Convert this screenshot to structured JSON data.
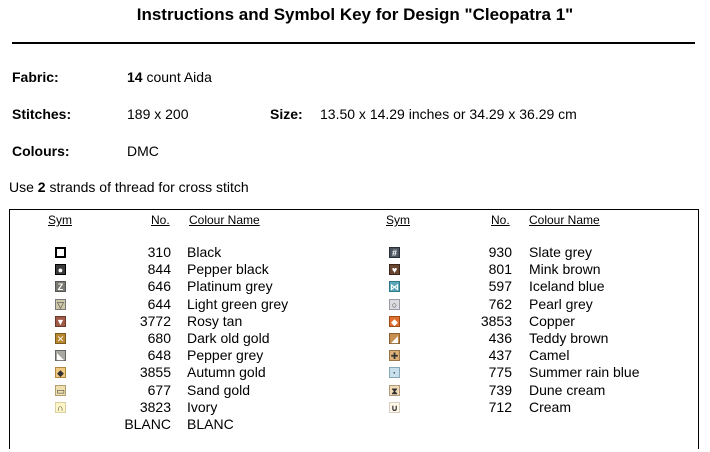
{
  "title": "Instructions and Symbol Key for Design \"Cleopatra 1\"",
  "fabric": {
    "label": "Fabric:",
    "count": "14",
    "rest": " count Aida"
  },
  "stitches": {
    "label": "Stitches:",
    "value": "189 x 200"
  },
  "size": {
    "label": "Size:",
    "value": "13.50 x 14.29 inches or 34.29 x 36.29 cm"
  },
  "colours": {
    "label": "Colours:",
    "value": "DMC"
  },
  "instructions": {
    "pre": "Use ",
    "strands": "2",
    "post": " strands of thread for cross stitch"
  },
  "table": {
    "headers": {
      "sym": "Sym",
      "no": "No.",
      "name": "Colour Name"
    },
    "left": [
      {
        "no": "310",
        "name": "Black",
        "sym_color": "#ffffff",
        "sym_border": "#000000",
        "glyph": ""
      },
      {
        "no": "844",
        "name": "Pepper black",
        "sym_color": "#3a3a3a",
        "sym_border": "#000000",
        "glyph": "●"
      },
      {
        "no": "646",
        "name": "Platinum grey",
        "sym_color": "#7a7a70",
        "sym_border": "#555555",
        "glyph": "Z"
      },
      {
        "no": "644",
        "name": "Light green grey",
        "sym_color": "#cfc8a8",
        "sym_border": "#777777",
        "glyph": "▽"
      },
      {
        "no": "3772",
        "name": "Rosy tan",
        "sym_color": "#a05a45",
        "sym_border": "#6a3a2a",
        "glyph": "▼"
      },
      {
        "no": "680",
        "name": "Dark old gold",
        "sym_color": "#b8862e",
        "sym_border": "#7a5a1e",
        "glyph": "✕"
      },
      {
        "no": "648",
        "name": "Pepper grey",
        "sym_color": "#a8a8a0",
        "sym_border": "#666666",
        "glyph": "◣"
      },
      {
        "no": "3855",
        "name": "Autumn gold",
        "sym_color": "#f0c880",
        "sym_border": "#b08840",
        "glyph": "◆"
      },
      {
        "no": "677",
        "name": "Sand gold",
        "sym_color": "#f0e0b0",
        "sym_border": "#b0a070",
        "glyph": "▭"
      },
      {
        "no": "3823",
        "name": "Ivory",
        "sym_color": "#fff6c8",
        "sym_border": "#d8d0a0",
        "glyph": "∩"
      },
      {
        "no": "BLANC",
        "name": "BLANC",
        "sym_color": "#ffffff",
        "sym_border": "#ffffff",
        "glyph": ""
      }
    ],
    "right": [
      {
        "no": "930",
        "name": "Slate grey",
        "sym_color": "#4a5560",
        "sym_border": "#2a3038",
        "glyph": "#"
      },
      {
        "no": "801",
        "name": "Mink brown",
        "sym_color": "#6a4530",
        "sym_border": "#3a2518",
        "glyph": "♥"
      },
      {
        "no": "597",
        "name": "Iceland blue",
        "sym_color": "#5aa8b8",
        "sym_border": "#307888",
        "glyph": "⋈"
      },
      {
        "no": "762",
        "name": "Pearl grey",
        "sym_color": "#dcdce0",
        "sym_border": "#9a9aa8",
        "glyph": "○"
      },
      {
        "no": "3853",
        "name": "Copper",
        "sym_color": "#e07030",
        "sym_border": "#a04a18",
        "glyph": "◆"
      },
      {
        "no": "436",
        "name": "Teddy brown",
        "sym_color": "#c89050",
        "sym_border": "#8a6030",
        "glyph": "◢"
      },
      {
        "no": "437",
        "name": "Camel",
        "sym_color": "#dcb078",
        "sym_border": "#9a7848",
        "glyph": "✚"
      },
      {
        "no": "775",
        "name": "Summer rain blue",
        "sym_color": "#c8e0ec",
        "sym_border": "#88a8b8",
        "glyph": "·"
      },
      {
        "no": "739",
        "name": "Dune cream",
        "sym_color": "#f0dcb8",
        "sym_border": "#b09878",
        "glyph": "⧗"
      },
      {
        "no": "712",
        "name": "Cream",
        "sym_color": "#fff8e8",
        "sym_border": "#d8d0c0",
        "glyph": "∪"
      }
    ]
  }
}
